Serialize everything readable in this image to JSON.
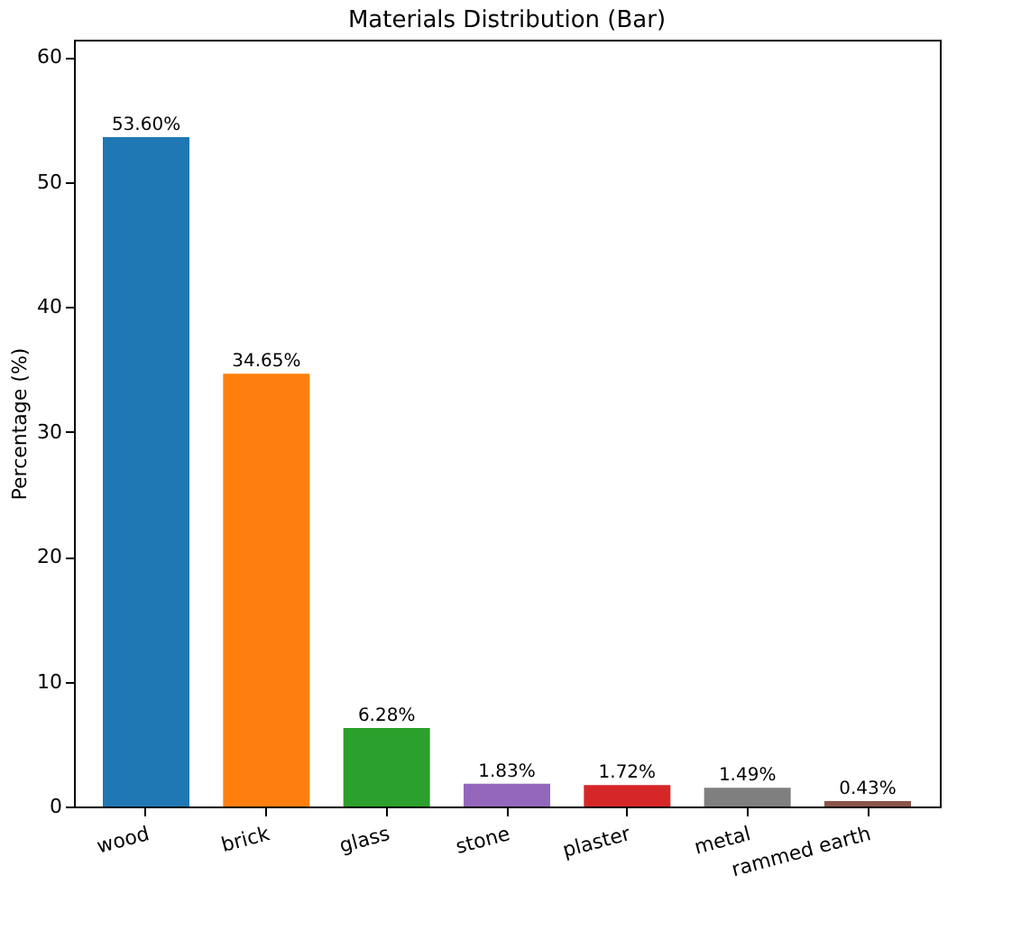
{
  "chart_data": {
    "type": "bar",
    "title": "Materials Distribution (Bar)",
    "ylabel": "Percentage (%)",
    "categories": [
      "wood",
      "brick",
      "glass",
      "stone",
      "plaster",
      "metal",
      "rammed earth"
    ],
    "values": [
      53.6,
      34.65,
      6.28,
      1.83,
      1.72,
      1.49,
      0.43
    ],
    "colors": [
      "#1f77b4",
      "#ff7f0e",
      "#2ca02c",
      "#9467bd",
      "#d62728",
      "#7f7f7f",
      "#8c564b"
    ],
    "value_labels": [
      "53.60%",
      "34.65%",
      "6.28%",
      "1.83%",
      "1.72%",
      "1.49%",
      "0.43%"
    ],
    "ylim": [
      0,
      61.4
    ],
    "yticks": [
      0,
      10,
      20,
      30,
      40,
      50,
      60
    ],
    "grid": false
  }
}
